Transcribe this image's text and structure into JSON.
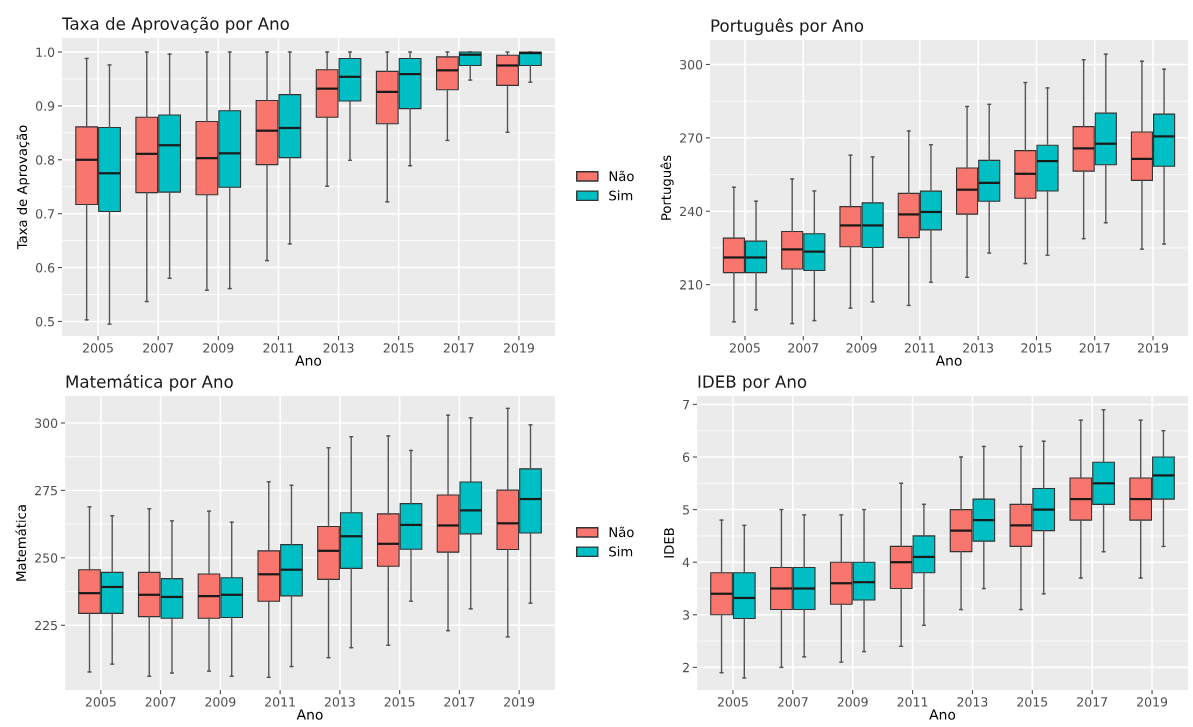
{
  "chart_data": [
    {
      "type": "box",
      "title": "Taxa de Aprovação por Ano",
      "xlabel": "Ano",
      "ylabel": "Taxa de Aprovação",
      "categories": [
        "2005",
        "2007",
        "2009",
        "2011",
        "2013",
        "2015",
        "2017",
        "2019"
      ],
      "ylim": [
        0.473,
        1.026
      ],
      "yticks": [
        0.5,
        0.6,
        0.7,
        0.8,
        0.9,
        {
          "value": 1.0,
          "label": "1.0"
        }
      ],
      "grid": true,
      "legend": "right",
      "series": [
        {
          "name": "Não",
          "color": "#f8766d",
          "boxes": [
            {
              "low": 0.503,
              "q1": 0.717,
              "median": 0.8,
              "q3": 0.861,
              "high": 0.988
            },
            {
              "low": 0.537,
              "q1": 0.739,
              "median": 0.811,
              "q3": 0.879,
              "high": 1.0
            },
            {
              "low": 0.558,
              "q1": 0.735,
              "median": 0.803,
              "q3": 0.871,
              "high": 1.0
            },
            {
              "low": 0.613,
              "q1": 0.791,
              "median": 0.854,
              "q3": 0.91,
              "high": 1.0
            },
            {
              "low": 0.751,
              "q1": 0.879,
              "median": 0.932,
              "q3": 0.967,
              "high": 1.0
            },
            {
              "low": 0.722,
              "q1": 0.867,
              "median": 0.926,
              "q3": 0.964,
              "high": 1.0
            },
            {
              "low": 0.836,
              "q1": 0.93,
              "median": 0.966,
              "q3": 0.991,
              "high": 1.0
            },
            {
              "low": 0.851,
              "q1": 0.938,
              "median": 0.975,
              "q3": 0.994,
              "high": 1.0
            }
          ]
        },
        {
          "name": "Sim",
          "color": "#00bfc4",
          "boxes": [
            {
              "low": 0.495,
              "q1": 0.704,
              "median": 0.775,
              "q3": 0.86,
              "high": 0.976
            },
            {
              "low": 0.58,
              "q1": 0.74,
              "median": 0.827,
              "q3": 0.883,
              "high": 0.996
            },
            {
              "low": 0.561,
              "q1": 0.749,
              "median": 0.812,
              "q3": 0.891,
              "high": 1.0
            },
            {
              "low": 0.644,
              "q1": 0.804,
              "median": 0.859,
              "q3": 0.921,
              "high": 1.0
            },
            {
              "low": 0.799,
              "q1": 0.909,
              "median": 0.954,
              "q3": 0.988,
              "high": 1.0
            },
            {
              "low": 0.789,
              "q1": 0.895,
              "median": 0.959,
              "q3": 0.988,
              "high": 1.0
            },
            {
              "low": 0.948,
              "q1": 0.975,
              "median": 0.995,
              "q3": 1.0,
              "high": 1.0
            },
            {
              "low": 0.944,
              "q1": 0.975,
              "median": 0.998,
              "q3": 1.0,
              "high": 1.0
            }
          ]
        }
      ]
    },
    {
      "type": "box",
      "title": "Português por Ano",
      "xlabel": "Ano",
      "ylabel": "Português",
      "categories": [
        "2005",
        "2007",
        "2009",
        "2011",
        "2013",
        "2015",
        "2017",
        "2019"
      ],
      "ylim": [
        189,
        310
      ],
      "yticks": [
        210,
        240,
        270,
        300
      ],
      "grid": true,
      "series": [
        {
          "color": "#f8766d",
          "boxes": [
            {
              "low": 194.8,
              "q1": 214.9,
              "median": 221.1,
              "q3": 229,
              "high": 249.8
            },
            {
              "low": 194.1,
              "q1": 216.4,
              "median": 224.4,
              "q3": 231.7,
              "high": 253.2
            },
            {
              "low": 200.4,
              "q1": 225.5,
              "median": 234.2,
              "q3": 241.9,
              "high": 262.9
            },
            {
              "low": 201.5,
              "q1": 229.2,
              "median": 238.7,
              "q3": 247.3,
              "high": 272.8
            },
            {
              "low": 213,
              "q1": 238.8,
              "median": 248.8,
              "q3": 257.7,
              "high": 282.8
            },
            {
              "low": 218.6,
              "q1": 245.3,
              "median": 255.3,
              "q3": 264.8,
              "high": 292.6
            },
            {
              "low": 228.8,
              "q1": 256.4,
              "median": 265.7,
              "q3": 274.6,
              "high": 301.9
            },
            {
              "low": 224.5,
              "q1": 252.6,
              "median": 261.4,
              "q3": 272.4,
              "high": 301.3
            }
          ]
        },
        {
          "color": "#00bfc4",
          "boxes": [
            {
              "low": 199.7,
              "q1": 214.9,
              "median": 221.1,
              "q3": 227.8,
              "high": 244.1
            },
            {
              "low": 195.3,
              "q1": 215.8,
              "median": 223.5,
              "q3": 230.8,
              "high": 248.3
            },
            {
              "low": 203,
              "q1": 225.2,
              "median": 234.2,
              "q3": 243.4,
              "high": 262.2
            },
            {
              "low": 211,
              "q1": 232.4,
              "median": 239.7,
              "q3": 248.2,
              "high": 267.2
            },
            {
              "low": 222.9,
              "q1": 244.1,
              "median": 251.6,
              "q3": 260.8,
              "high": 283.7
            },
            {
              "low": 222,
              "q1": 248.3,
              "median": 260.5,
              "q3": 267,
              "high": 290.4
            },
            {
              "low": 235.3,
              "q1": 259,
              "median": 267.6,
              "q3": 280.1,
              "high": 304.2
            },
            {
              "low": 226.6,
              "q1": 258.4,
              "median": 270.6,
              "q3": 279.7,
              "high": 298.1
            }
          ]
        }
      ]
    },
    {
      "type": "box",
      "title": "Matemática por Ano",
      "xlabel": "Ano",
      "ylabel": "Matemática",
      "categories": [
        "2005",
        "2007",
        "2009",
        "2011",
        "2013",
        "2015",
        "2017",
        "2019"
      ],
      "ylim": [
        201,
        310
      ],
      "yticks": [
        225,
        250,
        275,
        300
      ],
      "grid": true,
      "legend": "right",
      "series": [
        {
          "name": "Não",
          "color": "#f8766d",
          "boxes": [
            {
              "low": 207.7,
              "q1": 229.4,
              "median": 236.9,
              "q3": 245.6,
              "high": 268.9
            },
            {
              "low": 206.1,
              "q1": 228.2,
              "median": 236.3,
              "q3": 244.6,
              "high": 268.2
            },
            {
              "low": 208,
              "q1": 227.6,
              "median": 235.8,
              "q3": 244,
              "high": 267.3
            },
            {
              "low": 205.7,
              "q1": 233.9,
              "median": 243.9,
              "q3": 252.6,
              "high": 278.2
            },
            {
              "low": 213,
              "q1": 242,
              "median": 252.6,
              "q3": 261.6,
              "high": 290.8
            },
            {
              "low": 217.6,
              "q1": 246.9,
              "median": 255.2,
              "q3": 266.3,
              "high": 295.2
            },
            {
              "low": 223,
              "q1": 252.1,
              "median": 262,
              "q3": 273.3,
              "high": 302.9
            },
            {
              "low": 220.7,
              "q1": 253.1,
              "median": 262.8,
              "q3": 275.1,
              "high": 305.4
            }
          ]
        },
        {
          "name": "Sim",
          "color": "#00bfc4",
          "boxes": [
            {
              "low": 210.6,
              "q1": 229.4,
              "median": 239.2,
              "q3": 244.6,
              "high": 265.6
            },
            {
              "low": 207.3,
              "q1": 227.6,
              "median": 235.5,
              "q3": 242.3,
              "high": 263.7
            },
            {
              "low": 206.1,
              "q1": 227.9,
              "median": 236.3,
              "q3": 242.6,
              "high": 263.2
            },
            {
              "low": 209.7,
              "q1": 235.9,
              "median": 245.6,
              "q3": 254.9,
              "high": 276.9
            },
            {
              "low": 216.7,
              "q1": 246.1,
              "median": 258,
              "q3": 266.7,
              "high": 294.9
            },
            {
              "low": 233.9,
              "q1": 253.2,
              "median": 262.2,
              "q3": 270.1,
              "high": 289.8
            },
            {
              "low": 231.1,
              "q1": 258.9,
              "median": 267.6,
              "q3": 278.1,
              "high": 301.9
            },
            {
              "low": 233.2,
              "q1": 259.2,
              "median": 271.8,
              "q3": 283,
              "high": 299.3
            }
          ]
        }
      ]
    },
    {
      "type": "box",
      "title": "IDEB por Ano",
      "xlabel": "Ano",
      "ylabel": "IDEB",
      "categories": [
        "2005",
        "2007",
        "2009",
        "2011",
        "2013",
        "2015",
        "2017",
        "2019"
      ],
      "ylim": [
        1.57,
        7.16
      ],
      "yticks": [
        2,
        3,
        4,
        5,
        6,
        7
      ],
      "grid": true,
      "series": [
        {
          "color": "#f8766d",
          "boxes": [
            {
              "low": 1.9,
              "q1": 3.0,
              "median": 3.4,
              "q3": 3.8,
              "high": 4.8
            },
            {
              "low": 2.0,
              "q1": 3.1,
              "median": 3.5,
              "q3": 3.9,
              "high": 5.0
            },
            {
              "low": 2.1,
              "q1": 3.2,
              "median": 3.6,
              "q3": 4.0,
              "high": 4.9
            },
            {
              "low": 2.4,
              "q1": 3.5,
              "median": 4.0,
              "q3": 4.3,
              "high": 5.5
            },
            {
              "low": 3.1,
              "q1": 4.2,
              "median": 4.6,
              "q3": 5.0,
              "high": 6.0
            },
            {
              "low": 3.1,
              "q1": 4.3,
              "median": 4.7,
              "q3": 5.1,
              "high": 6.2
            },
            {
              "low": 3.7,
              "q1": 4.8,
              "median": 5.2,
              "q3": 5.6,
              "high": 6.7
            },
            {
              "low": 3.7,
              "q1": 4.8,
              "median": 5.2,
              "q3": 5.6,
              "high": 6.7
            }
          ]
        },
        {
          "color": "#00bfc4",
          "boxes": [
            {
              "low": 1.8,
              "q1": 2.93,
              "median": 3.32,
              "q3": 3.8,
              "high": 4.7
            },
            {
              "low": 2.2,
              "q1": 3.1,
              "median": 3.5,
              "q3": 3.9,
              "high": 4.9
            },
            {
              "low": 2.3,
              "q1": 3.28,
              "median": 3.62,
              "q3": 4.0,
              "high": 5.0
            },
            {
              "low": 2.8,
              "q1": 3.8,
              "median": 4.1,
              "q3": 4.5,
              "high": 5.1
            },
            {
              "low": 3.5,
              "q1": 4.4,
              "median": 4.8,
              "q3": 5.2,
              "high": 6.2
            },
            {
              "low": 3.4,
              "q1": 4.6,
              "median": 5.0,
              "q3": 5.4,
              "high": 6.3
            },
            {
              "low": 4.2,
              "q1": 5.1,
              "median": 5.5,
              "q3": 5.9,
              "high": 6.9
            },
            {
              "low": 4.3,
              "q1": 5.2,
              "median": 5.65,
              "q3": 6.0,
              "high": 6.5
            }
          ]
        }
      ]
    }
  ]
}
